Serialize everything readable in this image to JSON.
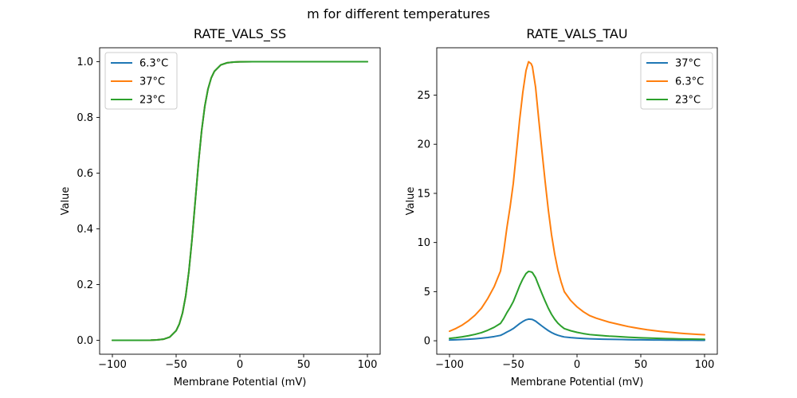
{
  "figure": {
    "suptitle": "m for different temperatures",
    "background": "#ffffff"
  },
  "colors": {
    "blue": "#1f77b4",
    "orange": "#ff7f0e",
    "green": "#2ca02c",
    "axis": "#000000",
    "legend_border": "#cccccc",
    "legend_fill": "#ffffff"
  },
  "chart_data": [
    {
      "type": "line",
      "title": "RATE_VALS_SS",
      "xlabel": "Membrane Potential (mV)",
      "ylabel": "Value",
      "xlim": [
        -110,
        110
      ],
      "ylim": [
        -0.05,
        1.05
      ],
      "grid": false,
      "xticks": {
        "values": [
          -100,
          -50,
          0,
          50,
          100
        ],
        "labels": [
          "−100",
          "−50",
          "0",
          "50",
          "100"
        ]
      },
      "yticks": {
        "values": [
          0.0,
          0.2,
          0.4,
          0.6,
          0.8,
          1.0
        ],
        "labels": [
          "0.0",
          "0.2",
          "0.4",
          "0.6",
          "0.8",
          "1.0"
        ]
      },
      "legend": {
        "location": "upper left",
        "entries": [
          {
            "label": "6.3°C",
            "color": "#1f77b4"
          },
          {
            "label": "37°C",
            "color": "#ff7f0e"
          },
          {
            "label": "23°C",
            "color": "#2ca02c"
          }
        ]
      },
      "note": "all three temperature curves overlap exactly; green drawn last is visible",
      "x": [
        -100,
        -90,
        -80,
        -70,
        -65,
        -60,
        -55,
        -50,
        -47.5,
        -45,
        -42.5,
        -40,
        -37.5,
        -35,
        -32.5,
        -30,
        -27.5,
        -25,
        -22.5,
        -20,
        -15,
        -10,
        -5,
        0,
        10,
        20,
        30,
        40,
        50,
        60,
        70,
        80,
        90,
        100
      ],
      "series": [
        {
          "name": "6.3°C",
          "color": "#1f77b4",
          "values": [
            0,
            0,
            0,
            0.0004,
            0.0013,
            0.0038,
            0.0116,
            0.0345,
            0.0585,
            0.0978,
            0.159,
            0.2476,
            0.3646,
            0.5,
            0.6354,
            0.7524,
            0.841,
            0.9022,
            0.9415,
            0.9655,
            0.9884,
            0.9961,
            0.9987,
            0.9996,
            1,
            1,
            1,
            1,
            1,
            1,
            1,
            1,
            1,
            1
          ]
        },
        {
          "name": "37°C",
          "color": "#ff7f0e",
          "values": [
            0,
            0,
            0,
            0.0004,
            0.0013,
            0.0038,
            0.0116,
            0.0345,
            0.0585,
            0.0978,
            0.159,
            0.2476,
            0.3646,
            0.5,
            0.6354,
            0.7524,
            0.841,
            0.9022,
            0.9415,
            0.9655,
            0.9884,
            0.9961,
            0.9987,
            0.9996,
            1,
            1,
            1,
            1,
            1,
            1,
            1,
            1,
            1,
            1
          ]
        },
        {
          "name": "23°C",
          "color": "#2ca02c",
          "values": [
            0,
            0,
            0,
            0.0004,
            0.0013,
            0.0038,
            0.0116,
            0.0345,
            0.0585,
            0.0978,
            0.159,
            0.2476,
            0.3646,
            0.5,
            0.6354,
            0.7524,
            0.841,
            0.9022,
            0.9415,
            0.9655,
            0.9884,
            0.9961,
            0.9987,
            0.9996,
            1,
            1,
            1,
            1,
            1,
            1,
            1,
            1,
            1,
            1
          ]
        }
      ]
    },
    {
      "type": "line",
      "title": "RATE_VALS_TAU",
      "xlabel": "Membrane Potential (mV)",
      "ylabel": "Value",
      "xlim": [
        -110,
        110
      ],
      "ylim": [
        -1.37,
        29.82
      ],
      "grid": false,
      "xticks": {
        "values": [
          -100,
          -50,
          0,
          50,
          100
        ],
        "labels": [
          "−100",
          "−50",
          "0",
          "50",
          "100"
        ]
      },
      "yticks": {
        "values": [
          0,
          5,
          10,
          15,
          20,
          25
        ],
        "labels": [
          "0",
          "5",
          "10",
          "15",
          "20",
          "25"
        ]
      },
      "legend": {
        "location": "upper right",
        "entries": [
          {
            "label": "37°C",
            "color": "#1f77b4"
          },
          {
            "label": "6.3°C",
            "color": "#ff7f0e"
          },
          {
            "label": "23°C",
            "color": "#2ca02c"
          }
        ]
      },
      "note": "peak near -38 mV; orange peak 28.4, green 7.06, blue 2.20",
      "x": [
        -100,
        -95,
        -90,
        -85,
        -80,
        -75,
        -70,
        -65,
        -60,
        -57.5,
        -55,
        -52.5,
        -50,
        -47.5,
        -45,
        -42.5,
        -40,
        -38,
        -36,
        -35,
        -32.5,
        -30,
        -27.5,
        -25,
        -22.5,
        -20,
        -17.5,
        -15,
        -12.5,
        -10,
        -5,
        0,
        5,
        10,
        15,
        20,
        25,
        30,
        35,
        40,
        45,
        50,
        55,
        60,
        65,
        70,
        75,
        80,
        85,
        90,
        95,
        100
      ],
      "series": [
        {
          "name": "37°C",
          "color": "#1f77b4",
          "values": [
            0.075,
            0.097,
            0.124,
            0.159,
            0.201,
            0.256,
            0.333,
            0.426,
            0.55,
            0.705,
            0.891,
            1.053,
            1.239,
            1.487,
            1.743,
            1.96,
            2.13,
            2.2,
            2.184,
            2.161,
            1.998,
            1.743,
            1.495,
            1.255,
            1.03,
            0.837,
            0.682,
            0.558,
            0.465,
            0.387,
            0.318,
            0.267,
            0.229,
            0.198,
            0.178,
            0.163,
            0.147,
            0.136,
            0.124,
            0.112,
            0.103,
            0.095,
            0.087,
            0.081,
            0.074,
            0.07,
            0.065,
            0.06,
            0.057,
            0.053,
            0.05,
            0.048
          ]
        },
        {
          "name": "6.3°C",
          "color": "#ff7f0e",
          "values": [
            0.97,
            1.25,
            1.6,
            2.05,
            2.6,
            3.3,
            4.3,
            5.5,
            7.1,
            9.1,
            11.5,
            13.6,
            16.0,
            19.2,
            22.5,
            25.3,
            27.5,
            28.4,
            28.2,
            27.9,
            25.8,
            22.5,
            19.3,
            16.2,
            13.3,
            10.8,
            8.8,
            7.2,
            6.0,
            5.0,
            4.1,
            3.45,
            2.95,
            2.55,
            2.3,
            2.1,
            1.9,
            1.75,
            1.6,
            1.45,
            1.33,
            1.22,
            1.12,
            1.04,
            0.96,
            0.9,
            0.84,
            0.78,
            0.73,
            0.69,
            0.65,
            0.62
          ]
        },
        {
          "name": "23°C",
          "color": "#2ca02c",
          "values": [
            0.24,
            0.31,
            0.4,
            0.51,
            0.65,
            0.82,
            1.07,
            1.37,
            1.77,
            2.26,
            2.86,
            3.38,
            3.98,
            4.78,
            5.6,
            6.29,
            6.84,
            7.06,
            7.01,
            6.94,
            6.42,
            5.6,
            4.8,
            4.03,
            3.31,
            2.69,
            2.19,
            1.79,
            1.49,
            1.24,
            1.02,
            0.86,
            0.73,
            0.63,
            0.57,
            0.52,
            0.47,
            0.44,
            0.4,
            0.36,
            0.33,
            0.3,
            0.28,
            0.26,
            0.24,
            0.22,
            0.21,
            0.19,
            0.18,
            0.17,
            0.16,
            0.15
          ]
        }
      ]
    }
  ]
}
